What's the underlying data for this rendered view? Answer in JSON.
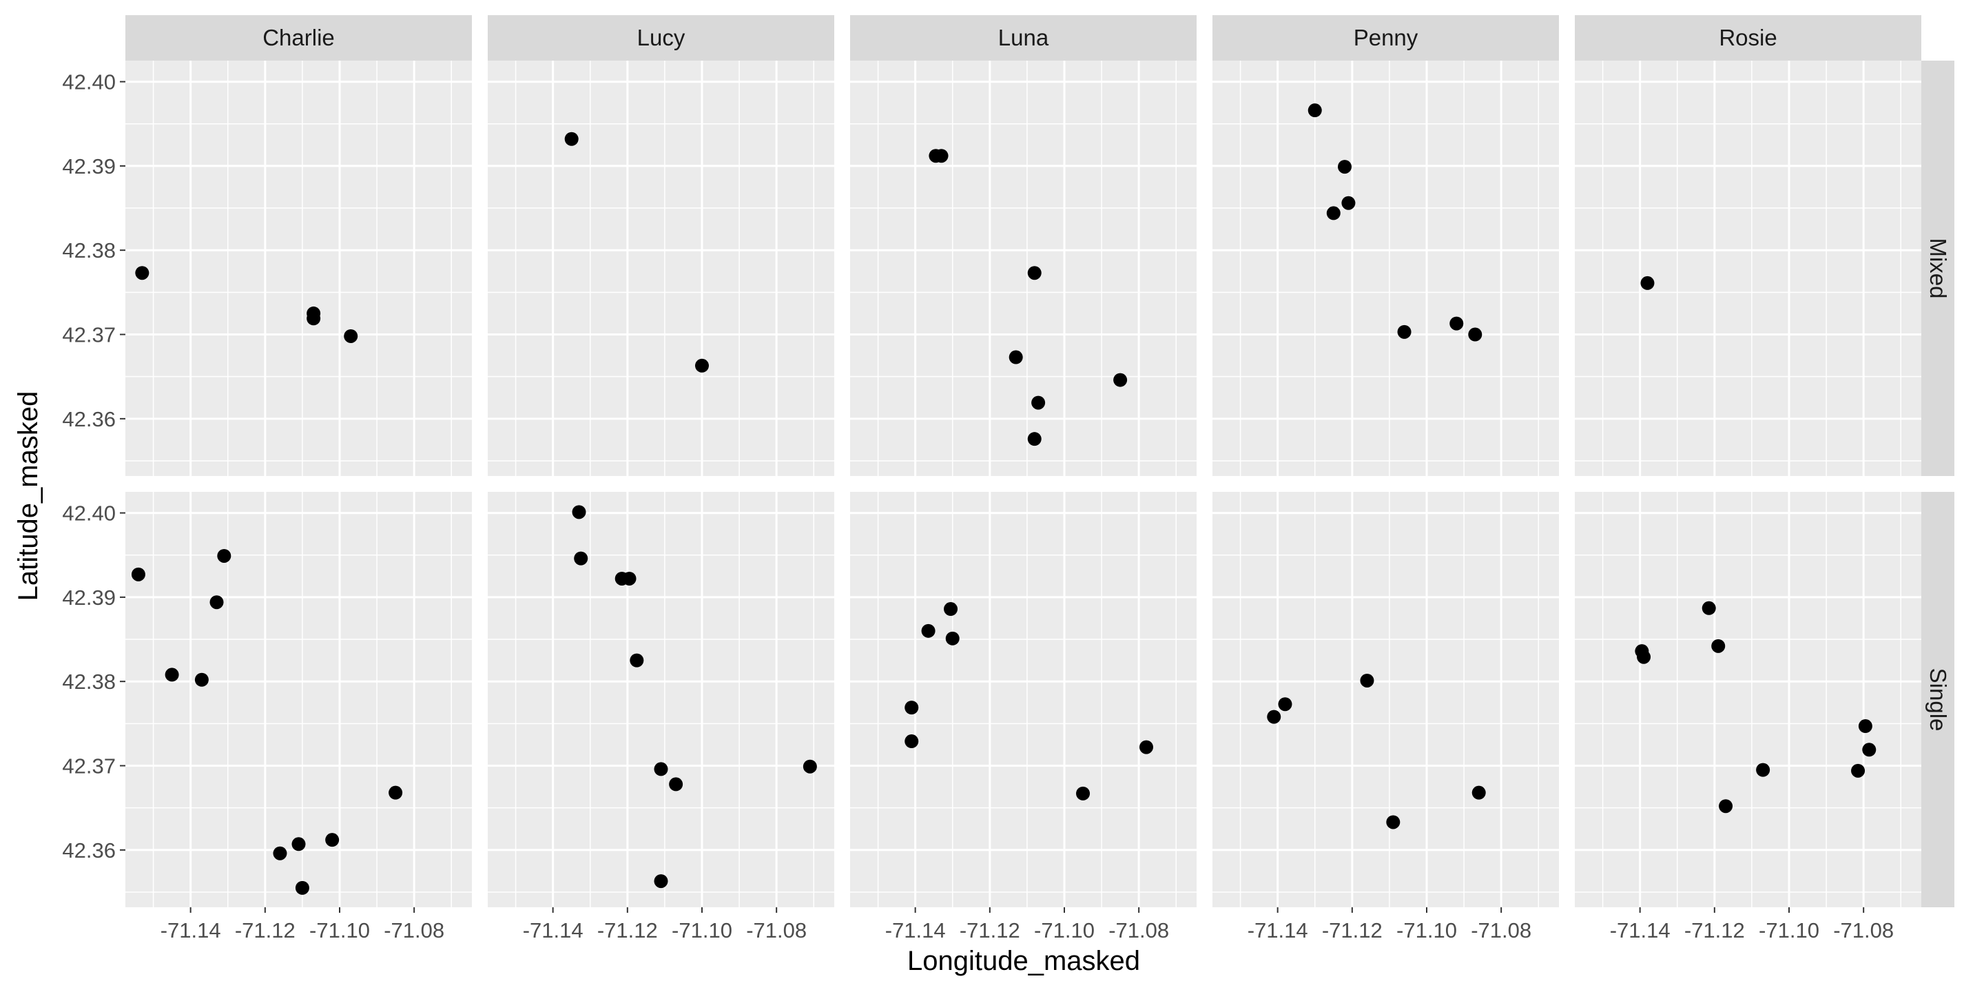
{
  "chart_data": {
    "type": "scatter",
    "xlabel": "Longitude_masked",
    "ylabel": "Latitude_masked",
    "column_facets": [
      "Charlie",
      "Lucy",
      "Luna",
      "Penny",
      "Rosie"
    ],
    "row_facets": [
      "Mixed",
      "Single"
    ],
    "xlim": [
      -71.1575,
      -71.0645
    ],
    "ylim": [
      42.3532,
      42.4025
    ],
    "x_ticks": [
      -71.14,
      -71.12,
      -71.1,
      -71.08
    ],
    "x_tick_labels": [
      "-71.14",
      "-71.12",
      "-71.10",
      "-71.08"
    ],
    "y_ticks": [
      42.36,
      42.37,
      42.38,
      42.39,
      42.4
    ],
    "y_tick_labels": [
      "42.36",
      "42.37",
      "42.38",
      "42.39",
      "42.40"
    ],
    "grid": true,
    "panels": [
      {
        "column": "Charlie",
        "row": "Mixed",
        "points": [
          [
            -71.153,
            42.3773
          ],
          [
            -71.107,
            42.3725
          ],
          [
            -71.107,
            42.3719
          ],
          [
            -71.097,
            42.3698
          ]
        ]
      },
      {
        "column": "Lucy",
        "row": "Mixed",
        "points": [
          [
            -71.135,
            42.3932
          ],
          [
            -71.1,
            42.3663
          ]
        ]
      },
      {
        "column": "Luna",
        "row": "Mixed",
        "points": [
          [
            -71.1345,
            42.3912
          ],
          [
            -71.133,
            42.3912
          ],
          [
            -71.108,
            42.3773
          ],
          [
            -71.113,
            42.3673
          ],
          [
            -71.107,
            42.3619
          ],
          [
            -71.085,
            42.3646
          ],
          [
            -71.108,
            42.3576
          ]
        ]
      },
      {
        "column": "Penny",
        "row": "Mixed",
        "points": [
          [
            -71.13,
            42.3966
          ],
          [
            -71.122,
            42.3899
          ],
          [
            -71.121,
            42.3856
          ],
          [
            -71.125,
            42.3844
          ],
          [
            -71.106,
            42.3703
          ],
          [
            -71.092,
            42.3713
          ],
          [
            -71.087,
            42.37
          ]
        ]
      },
      {
        "column": "Rosie",
        "row": "Mixed",
        "points": [
          [
            -71.138,
            42.3761
          ]
        ]
      },
      {
        "column": "Charlie",
        "row": "Single",
        "points": [
          [
            -71.154,
            42.3927
          ],
          [
            -71.131,
            42.3949
          ],
          [
            -71.133,
            42.3894
          ],
          [
            -71.145,
            42.3808
          ],
          [
            -71.137,
            42.3802
          ],
          [
            -71.085,
            42.3668
          ],
          [
            -71.102,
            42.3612
          ],
          [
            -71.111,
            42.3607
          ],
          [
            -71.116,
            42.3596
          ],
          [
            -71.11,
            42.3555
          ]
        ]
      },
      {
        "column": "Lucy",
        "row": "Single",
        "points": [
          [
            -71.133,
            42.4001
          ],
          [
            -71.1325,
            42.3946
          ],
          [
            -71.1215,
            42.3922
          ],
          [
            -71.1195,
            42.3922
          ],
          [
            -71.1175,
            42.3825
          ],
          [
            -71.111,
            42.3696
          ],
          [
            -71.107,
            42.3678
          ],
          [
            -71.071,
            42.3699
          ],
          [
            -71.111,
            42.3563
          ]
        ]
      },
      {
        "column": "Luna",
        "row": "Single",
        "points": [
          [
            -71.1305,
            42.3886
          ],
          [
            -71.1365,
            42.386
          ],
          [
            -71.13,
            42.3851
          ],
          [
            -71.141,
            42.3769
          ],
          [
            -71.141,
            42.3729
          ],
          [
            -71.078,
            42.3722
          ],
          [
            -71.095,
            42.3667
          ]
        ]
      },
      {
        "column": "Penny",
        "row": "Single",
        "points": [
          [
            -71.138,
            42.3773
          ],
          [
            -71.141,
            42.3758
          ],
          [
            -71.116,
            42.3801
          ],
          [
            -71.086,
            42.3668
          ],
          [
            -71.109,
            42.3633
          ]
        ]
      },
      {
        "column": "Rosie",
        "row": "Single",
        "points": [
          [
            -71.1215,
            42.3887
          ],
          [
            -71.1395,
            42.3836
          ],
          [
            -71.139,
            42.3829
          ],
          [
            -71.119,
            42.3842
          ],
          [
            -71.0795,
            42.3747
          ],
          [
            -71.0785,
            42.3719
          ],
          [
            -71.107,
            42.3695
          ],
          [
            -71.0815,
            42.3694
          ],
          [
            -71.117,
            42.3652
          ]
        ]
      }
    ]
  }
}
